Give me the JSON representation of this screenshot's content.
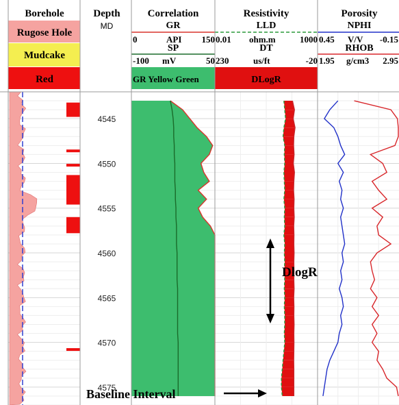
{
  "tracks": {
    "borehole": {
      "title": "Borehole",
      "legend": [
        "Rugose Hole",
        "Mudcake",
        "Red"
      ]
    },
    "depth": {
      "title": "Depth",
      "units": "MD"
    },
    "correlation": {
      "title": "Correlation",
      "gr": {
        "name": "GR",
        "min": "0",
        "units": "API",
        "max": "150"
      },
      "sp": {
        "name": "SP",
        "min": "-100",
        "units": "mV",
        "max": "50"
      },
      "fill_label": "GR Yellow Green"
    },
    "resistivity": {
      "title": "Resistivity",
      "lld": {
        "name": "LLD",
        "min": "0.01",
        "units": "ohm.m",
        "max": "1000"
      },
      "dt": {
        "name": "DT",
        "min": "230",
        "units": "us/ft",
        "max": "-20"
      },
      "fill_label": "DLogR"
    },
    "porosity": {
      "title": "Porosity",
      "nphi": {
        "name": "NPHI",
        "min": "0.45",
        "units": "V/V",
        "max": "-0.15"
      },
      "rhob": {
        "name": "RHOB",
        "min": "1.95",
        "units": "g/cm3",
        "max": "2.95"
      }
    }
  },
  "colors": {
    "gr_fill": "#3dbd6e",
    "gr_curve": "#d9342b",
    "sp_curve": "#1a6b2a",
    "lld_curve": "#c8252a",
    "dt_curve": "#2a9a3a",
    "dlogr_fill": "#e01010",
    "nphi_curve": "#2030c8",
    "rhob_curve": "#d8262a",
    "rugose": "#f5a3a0",
    "red_flag": "#ee1010",
    "mudcake": "#f4ee50"
  },
  "annotations": {
    "dlogr": "DlogR",
    "baseline": "Baseline Interval"
  },
  "chart_data": {
    "type": "line",
    "y_axis": {
      "label": "Depth",
      "units": "MD",
      "range": [
        4542,
        4577
      ],
      "ticks": [
        4545,
        4550,
        4555,
        4560,
        4565,
        4570,
        4575
      ]
    },
    "depth": [
      4543,
      4544,
      4545,
      4546,
      4547,
      4548,
      4549,
      4550,
      4551,
      4552,
      4553,
      4554,
      4555,
      4556,
      4557,
      4558,
      4559,
      4560,
      4561,
      4562,
      4563,
      4564,
      4565,
      4566,
      4567,
      4568,
      4569,
      4570,
      4571,
      4572,
      4573,
      4574,
      4575,
      4576
    ],
    "series": [
      {
        "name": "GR",
        "x_range": [
          0,
          150
        ],
        "values": [
          70,
          92,
          105,
          118,
          135,
          146,
          140,
          125,
          130,
          140,
          120,
          135,
          120,
          128,
          142,
          150,
          150,
          150,
          150,
          150,
          150,
          150,
          150,
          150,
          150,
          150,
          150,
          150,
          150,
          150,
          150,
          150,
          150,
          150
        ]
      },
      {
        "name": "SP",
        "x_range": [
          -100,
          50
        ],
        "values": [
          -30,
          -27,
          -25,
          -24,
          -24,
          -23,
          -23,
          -22,
          -22,
          -22,
          -21,
          -21,
          -20,
          -20,
          -19,
          -19,
          -19,
          -18,
          -18,
          -18,
          -18,
          -17,
          -17,
          -17,
          -17,
          -17,
          -17,
          -16,
          -16,
          -16,
          -16,
          -16,
          -16,
          -16
        ]
      },
      {
        "name": "LLD",
        "x_range": [
          0.01,
          1000
        ],
        "values": [
          60,
          75,
          65,
          80,
          70,
          68,
          72,
          66,
          75,
          70,
          68,
          72,
          70,
          73,
          69,
          71,
          70,
          72,
          70,
          71,
          70,
          72,
          69,
          71,
          70,
          72,
          70,
          71,
          70,
          69,
          70,
          70,
          70,
          70
        ]
      },
      {
        "name": "DT",
        "x_range": [
          230,
          -20
        ],
        "values": [
          62,
          60,
          58,
          62,
          64,
          60,
          61,
          60,
          62,
          61,
          60,
          62,
          60,
          61,
          60,
          62,
          60,
          61,
          60,
          61,
          60,
          61,
          60,
          61,
          60,
          60,
          61,
          60,
          62,
          64,
          66,
          68,
          68,
          66
        ]
      },
      {
        "name": "NPHI",
        "x_range": [
          0.45,
          -0.15
        ],
        "values": [
          0.3,
          0.36,
          0.4,
          0.33,
          0.3,
          0.28,
          0.25,
          0.3,
          0.26,
          0.29,
          0.27,
          0.28,
          0.26,
          0.28,
          0.27,
          0.26,
          0.25,
          0.27,
          0.26,
          0.28,
          0.27,
          0.29,
          0.27,
          0.26,
          0.28,
          0.27,
          0.29,
          0.3,
          0.33,
          0.36,
          0.38,
          0.39,
          0.4,
          0.41
        ]
      },
      {
        "name": "RHOB",
        "x_range": [
          1.95,
          2.95
        ],
        "values": [
          2.4,
          2.85,
          2.93,
          2.95,
          2.95,
          2.9,
          2.6,
          2.75,
          2.8,
          2.62,
          2.7,
          2.8,
          2.62,
          2.75,
          2.68,
          2.7,
          2.85,
          2.68,
          2.6,
          2.62,
          2.65,
          2.6,
          2.68,
          2.62,
          2.7,
          2.62,
          2.68,
          2.62,
          2.7,
          2.68,
          2.75,
          2.8,
          2.92,
          2.95
        ]
      }
    ],
    "grid": true
  }
}
